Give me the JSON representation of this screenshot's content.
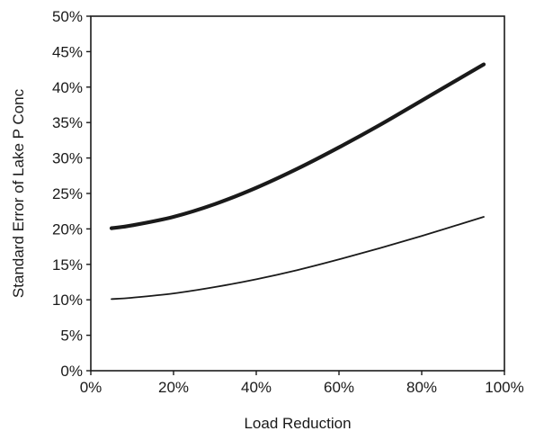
{
  "chart_data": {
    "type": "line",
    "xlabel": "Load Reduction",
    "ylabel": "Standard Error of Lake P Conc",
    "xlim": [
      0,
      1
    ],
    "ylim": [
      0,
      0.5
    ],
    "x_ticks": [
      "0%",
      "20%",
      "40%",
      "60%",
      "80%",
      "100%"
    ],
    "y_ticks": [
      "0%",
      "5%",
      "10%",
      "15%",
      "20%",
      "25%",
      "30%",
      "35%",
      "40%",
      "45%",
      "50%"
    ],
    "grid": false,
    "legend": "none",
    "series": [
      {
        "style": "thick",
        "x": [
          0.05,
          0.1,
          0.2,
          0.3,
          0.4,
          0.5,
          0.6,
          0.7,
          0.8,
          0.9,
          0.95
        ],
        "y": [
          0.201,
          0.205,
          0.217,
          0.235,
          0.258,
          0.285,
          0.315,
          0.347,
          0.381,
          0.415,
          0.432
        ]
      },
      {
        "style": "thin",
        "x": [
          0.05,
          0.1,
          0.2,
          0.3,
          0.4,
          0.5,
          0.6,
          0.7,
          0.8,
          0.9,
          0.95
        ],
        "y": [
          0.101,
          0.103,
          0.109,
          0.118,
          0.129,
          0.142,
          0.157,
          0.173,
          0.19,
          0.208,
          0.217
        ]
      }
    ]
  }
}
